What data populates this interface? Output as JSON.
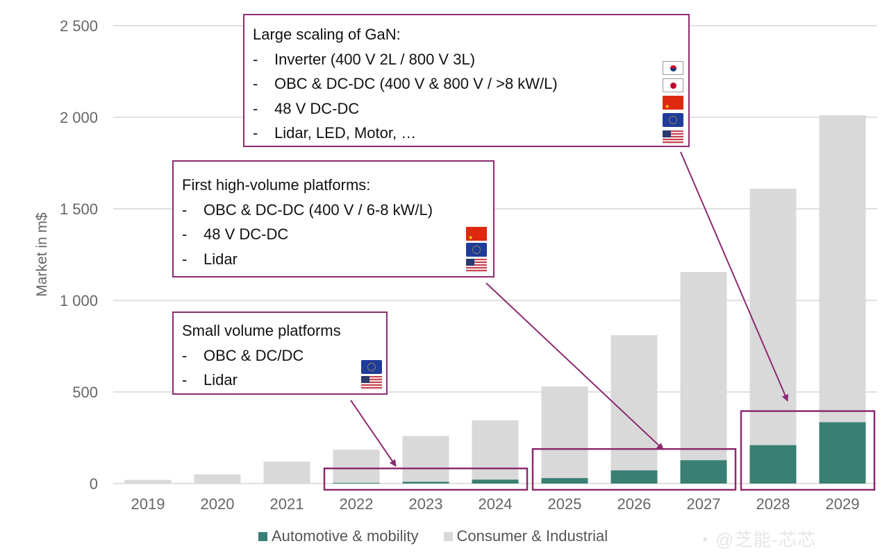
{
  "chart_data": {
    "type": "bar",
    "stacked": true,
    "title": "",
    "xlabel": "",
    "ylabel": "Market in m$",
    "ylim": [
      0,
      2500
    ],
    "yticks": [
      0,
      500,
      1000,
      1500,
      2000,
      2500
    ],
    "ytick_labels": [
      "0",
      "500",
      "1 000",
      "1 500",
      "2 000",
      "2 500"
    ],
    "grid": true,
    "categories": [
      "2019",
      "2020",
      "2021",
      "2022",
      "2023",
      "2024",
      "2025",
      "2026",
      "2027",
      "2028",
      "2029"
    ],
    "series": [
      {
        "name": "Automotive & mobility",
        "color": "#3a7f74",
        "values": [
          0,
          0,
          0,
          4,
          10,
          22,
          30,
          72,
          128,
          210,
          335
        ]
      },
      {
        "name": "Consumer & Industrial",
        "color": "#d9d9d9",
        "values": [
          20,
          50,
          120,
          181,
          250,
          323,
          500,
          738,
          1027,
          1400,
          1676
        ]
      }
    ],
    "totals": [
      20,
      50,
      120,
      185,
      260,
      345,
      530,
      810,
      1155,
      1610,
      2011
    ],
    "legend_position": "bottom",
    "annotations": [
      {
        "id": "small",
        "title": "Small volume platforms",
        "items": [
          "OBC & DC/DC",
          "Lidar"
        ],
        "flags": [
          "eu-flag",
          "us-flag"
        ],
        "highlight_years": [
          "2022",
          "2023",
          "2024"
        ]
      },
      {
        "id": "first",
        "title": "First high-volume platforms:",
        "items": [
          "OBC & DC-DC (400 V / 6-8 kW/L)",
          "48 V DC-DC",
          "Lidar"
        ],
        "flags": [
          "cn-flag",
          "eu-flag",
          "us-flag"
        ],
        "highlight_years": [
          "2025",
          "2026",
          "2027"
        ]
      },
      {
        "id": "large",
        "title": "Large scaling of GaN:",
        "items": [
          "Inverter (400 V 2L / 800 V 3L)",
          "OBC & DC-DC (400 V & 800 V / >8 kW/L)",
          "48 V DC-DC",
          "Lidar, LED, Motor, …"
        ],
        "flags": [
          "kr-flag",
          "jp-flag",
          "cn-flag",
          "eu-flag",
          "us-flag"
        ],
        "highlight_years": [
          "2028",
          "2029"
        ]
      }
    ],
    "annotation_color": "#8c2a6f"
  },
  "legend": {
    "items": [
      {
        "label": "Automotive & mobility",
        "color": "#3a7f74"
      },
      {
        "label": "Consumer & Industrial",
        "color": "#d9d9d9"
      }
    ]
  },
  "dash": "-",
  "watermark": "@芝能-芯芯"
}
